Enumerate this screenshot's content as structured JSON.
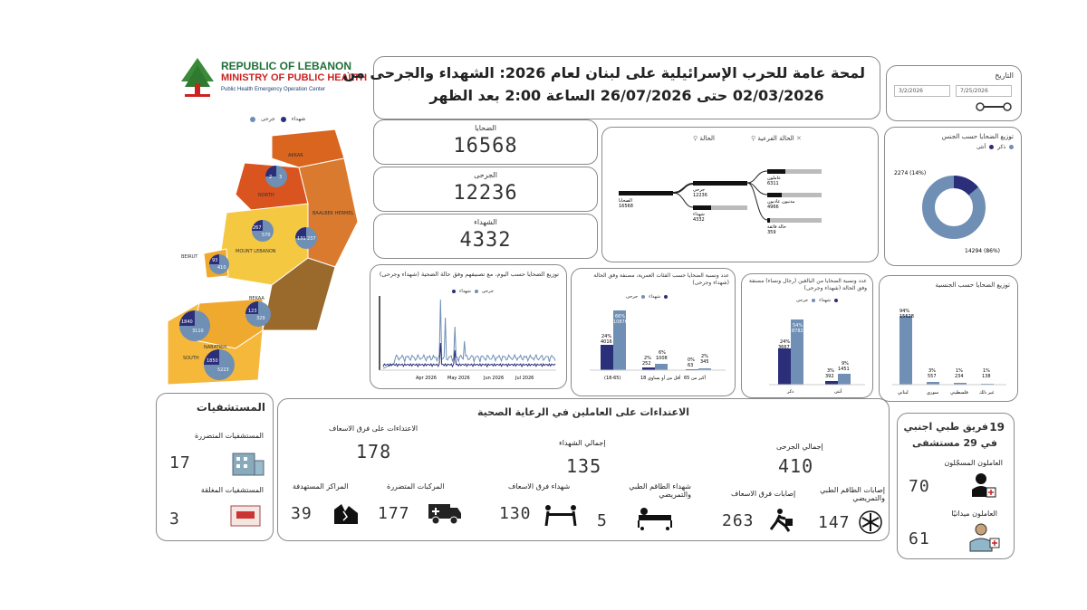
{
  "logo": {
    "line1": "REPUBLIC OF LEBANON",
    "line2": "MINISTRY OF PUBLIC HEALTH",
    "line3": "Public Health Emergency Operation Center"
  },
  "title": {
    "line1": "لمحة عامة للحرب الإسرائيلية على لبنان لعام 2026: الشهداء والجرحى من",
    "line2": "02/03/2026 حتى 26/07/2026 الساعة 2:00 بعد الظهر"
  },
  "date_filter": {
    "label": "التاريخ",
    "from": "3/2/2026",
    "to": "7/25/2026"
  },
  "map": {
    "legend_injured": "جرحى",
    "legend_dead": "شهداء",
    "regions": [
      {
        "name": "AKKAR",
        "dead": "",
        "injured": ""
      },
      {
        "name": "NORTH",
        "dead": "2",
        "injured": "3"
      },
      {
        "name": "BAALBEK HERMEL",
        "dead": "131",
        "injured": "237"
      },
      {
        "name": "MOUNT LEBANON",
        "dead": "267",
        "injured": "570"
      },
      {
        "name": "BEIRUT",
        "dead": "93",
        "injured": "410"
      },
      {
        "name": "BEKAA",
        "dead": "123",
        "injured": "329"
      },
      {
        "name": "NABATIEH",
        "dead": "1840",
        "injured": "3110"
      },
      {
        "name": "SOUTH",
        "dead": "1850",
        "injured": "5223"
      }
    ]
  },
  "kpis": {
    "victims_label": "الضحايا",
    "victims_value": "16568",
    "injured_label": "الجرحى",
    "injured_value": "12236",
    "dead_label": "الشهداء",
    "dead_value": "4332"
  },
  "tree": {
    "filter_status": "الحالة",
    "filter_sub": "الحالة الفرعية",
    "root_label": "الضحايا",
    "root_value": "16568",
    "injured_label": "جرحى",
    "injured_value": "12236",
    "dead_label": "شهداء",
    "dead_value": "4332",
    "leaves": [
      {
        "label": "عاملون",
        "value": "6311"
      },
      {
        "label": "مدنيون عاديون",
        "value": "4966"
      },
      {
        "label": "حالة فائقة",
        "value": "359"
      }
    ]
  },
  "gender_donut": {
    "title": "توزيع الضحايا حسب الجنس",
    "legend_female": "أنثى",
    "legend_male": "ذكر",
    "female_label": "2274 (14%)",
    "male_label": "14294 (86%)",
    "female_pct": 14,
    "male_pct": 86
  },
  "timeline": {
    "title": "توزيع الضحايا حسب اليوم، مع تصنيفهم وفق حالة الضحية (شهداء وجرحى)",
    "legend_dead": "شهداء",
    "legend_injured": "جرحى",
    "xticks": [
      "Apr 2026",
      "May 2026",
      "Jun 2026",
      "Jul 2026"
    ]
  },
  "age_chart": {
    "title": "عدد ونسبة الضحايا حسب الفئات العمرية، مصنفة وفق الحالة (شهداء وجرحى)",
    "legend_injured": "جرحى",
    "legend_dead": "شهداء",
    "categories": [
      "(18-65)",
      "أقل من أو يساوي 18",
      "أكبر من 65"
    ],
    "dead_pct": [
      "24%",
      "2%",
      "0%"
    ],
    "dead_vals": [
      "4016",
      "252",
      "63"
    ],
    "injured_pct": [
      "66%",
      "6%",
      "2%"
    ],
    "injured_vals": [
      "10876",
      "1008",
      "345"
    ]
  },
  "adult_chart": {
    "title": "عدد ونسبة الضحايا من البالغين (رجال ونساء) مصنفة وفق الحالة (شهداء وجرحى)",
    "legend_injured": "جرحى",
    "legend_dead": "شهداء",
    "categories": [
      "ذكر",
      "أنثى"
    ],
    "dead_pct": [
      "24%",
      "3%"
    ],
    "dead_vals": [
      "3667",
      "392"
    ],
    "injured_pct": [
      "54%",
      "9%"
    ],
    "injured_vals": [
      "8782",
      "1451"
    ]
  },
  "nationality_chart": {
    "title": "توزيع الضحايا حسب الجنسية",
    "categories": [
      "لبناني",
      "سوري",
      "فلسطيني",
      "غير ذلك"
    ],
    "pct": [
      "94%",
      "3%",
      "1%",
      "1%"
    ],
    "vals": [
      "15628",
      "557",
      "234",
      "138"
    ]
  },
  "hospitals": {
    "title": "المستشفيات",
    "damaged_label": "المستشفيات المتضررة",
    "damaged_value": "17",
    "closed_label": "المستشفيات المغلقة",
    "closed_value": "3"
  },
  "attacks": {
    "title": "الاعتداءات على العاملين في الرعاية الصحية",
    "ambulance_attacks_label": "الاعتداءات على فرق الاسعاف",
    "ambulance_attacks_value": "178",
    "total_dead_label": "إجمالي الشهداء",
    "total_dead_value": "135",
    "total_injured_label": "إجمالي الجرحى",
    "total_injured_value": "410",
    "damaged_vehicles_label": "المركبات المتضررة",
    "damaged_vehicles_value": "177",
    "targeted_centers_label": "المراكز المستهدفة",
    "targeted_centers_value": "39",
    "dead_ambulance_label": "شهداء فرق الاسعاف",
    "dead_ambulance_value": "130",
    "dead_medical_label": "شهداء الطاقم الطبي والتمريضي",
    "dead_medical_value": "5",
    "injured_ambulance_label": "إصابات فرق الاسعاف",
    "injured_ambulance_value": "263",
    "injured_medical_label": "إصابات الطاقم الطبي والتمريضي",
    "injured_medical_value": "147"
  },
  "foreign_team": {
    "count": "19",
    "line1": "فريق طبي اجنبي",
    "line2": "في 29 مستشفى",
    "registered_label": "العاملون المسجّلون",
    "registered_value": "70",
    "field_label": "العاملون ميدانيًا",
    "field_value": "61"
  },
  "colors": {
    "navy": "#2b2f7a",
    "steel": "#6f8fb5",
    "orange": "#d9651f",
    "amber": "#f0a92f",
    "yellow": "#f5c842",
    "brown": "#9a6a2c"
  }
}
